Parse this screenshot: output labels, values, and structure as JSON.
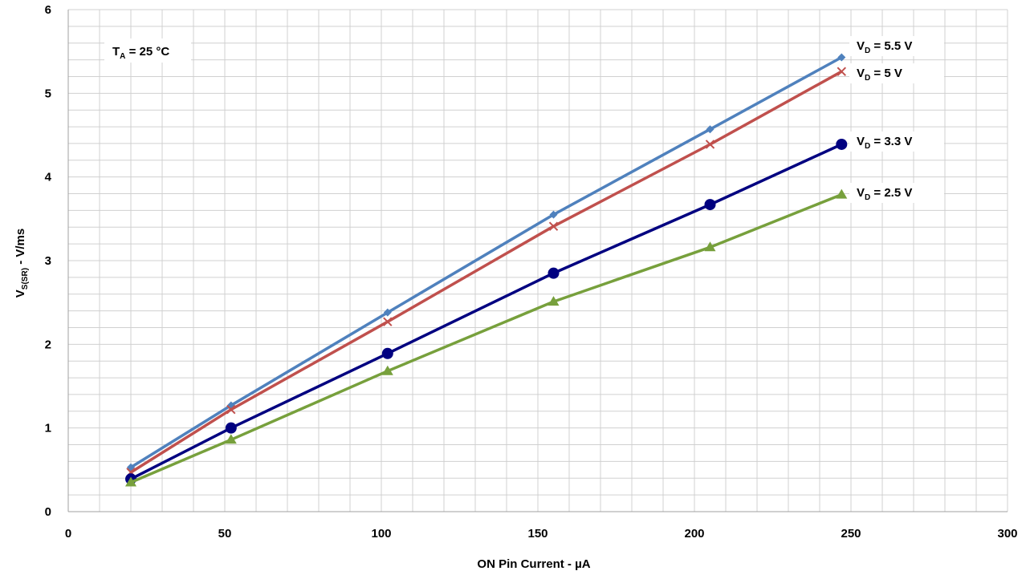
{
  "chart_data": {
    "type": "line",
    "title": "",
    "xlabel": "ON Pin Current - µA",
    "ylabel": {
      "main": "V",
      "sub": "S(SR)",
      "rest": " - V/ms"
    },
    "xlim": [
      0,
      300
    ],
    "ylim": [
      0,
      6
    ],
    "x_major_ticks": [
      "0",
      "50",
      "100",
      "150",
      "200",
      "250",
      "300"
    ],
    "y_major_ticks": [
      "0",
      "1",
      "2",
      "3",
      "4",
      "5",
      "6"
    ],
    "grid": true,
    "x_minor_step": 10,
    "y_minor_step": 0.2,
    "annotation": {
      "main": "T",
      "sub": "A",
      "rest": " = 25 °C"
    },
    "x": [
      20,
      52,
      102,
      155,
      205,
      247
    ],
    "series": [
      {
        "name": "V_D = 5.5 V",
        "label_main": "V",
        "label_sub": "D",
        "label_rest": " = 5.5 V",
        "color": "#4f81bd",
        "marker": "diamond",
        "values": [
          0.53,
          1.27,
          2.38,
          3.55,
          4.57,
          5.43
        ]
      },
      {
        "name": "V_D = 5 V",
        "label_main": "V",
        "label_sub": "D",
        "label_rest": " = 5 V",
        "color": "#c0504d",
        "marker": "x",
        "values": [
          0.47,
          1.22,
          2.27,
          3.41,
          4.39,
          5.26
        ]
      },
      {
        "name": "V_D = 3.3 V",
        "label_main": "V",
        "label_sub": "D",
        "label_rest": " = 3.3 V",
        "color": "#000080",
        "marker": "circle",
        "values": [
          0.39,
          1.0,
          1.89,
          2.85,
          3.67,
          4.39
        ]
      },
      {
        "name": "V_D = 2.5 V",
        "label_main": "V",
        "label_sub": "D",
        "label_rest": " = 2.5 V",
        "color": "#77a03c",
        "marker": "triangle",
        "values": [
          0.35,
          0.86,
          1.68,
          2.51,
          3.16,
          3.79
        ]
      }
    ]
  }
}
